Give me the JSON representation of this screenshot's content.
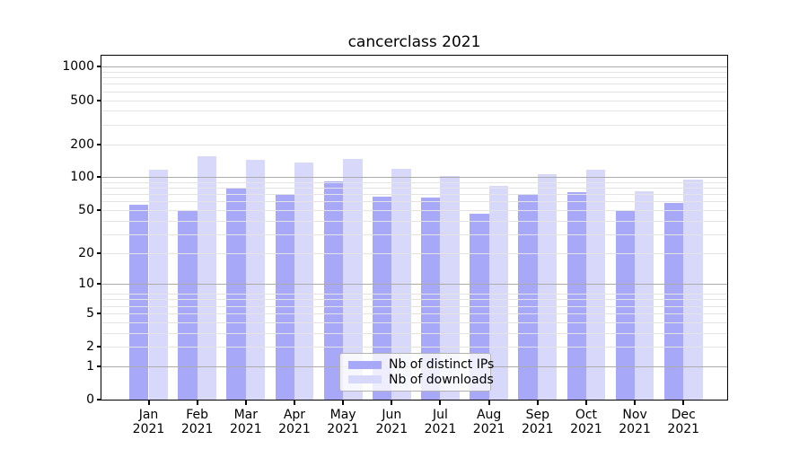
{
  "chart": {
    "title": "cancerclass 2021",
    "legend": {
      "entries": [
        {
          "label": "Nb of distinct IPs",
          "color": "#a8a8f8"
        },
        {
          "label": "Nb of downloads",
          "color": "#d8d8fa"
        }
      ],
      "position": "lower center"
    }
  },
  "chart_data": {
    "type": "bar",
    "title": "cancerclass 2021",
    "categories": [
      "Jan",
      "Feb",
      "Mar",
      "Apr",
      "May",
      "Jun",
      "Jul",
      "Aug",
      "Sep",
      "Oct",
      "Nov",
      "Dec"
    ],
    "category_year": "2021",
    "series": [
      {
        "name": "Nb of distinct IPs",
        "color": "#a8a8f8",
        "values": [
          56,
          50,
          79,
          71,
          91,
          66,
          65,
          46,
          69,
          73,
          50,
          58
        ]
      },
      {
        "name": "Nb of downloads",
        "color": "#d8d8fa",
        "values": [
          118,
          154,
          144,
          137,
          148,
          120,
          103,
          84,
          107,
          118,
          74,
          95
        ]
      }
    ],
    "xlabel": "",
    "ylabel": "",
    "yscale": "log1p",
    "yticks": [
      0,
      1,
      2,
      5,
      10,
      20,
      50,
      100,
      200,
      500,
      1000
    ],
    "ylim": [
      0,
      1260
    ],
    "grid": true,
    "grid_major_at": [
      1,
      10,
      100,
      1000
    ],
    "grid_minor_at": [
      2,
      3,
      4,
      5,
      6,
      7,
      8,
      20,
      30,
      40,
      50,
      60,
      70,
      80,
      90,
      200,
      300,
      400,
      500,
      600,
      700,
      800,
      900
    ],
    "legend_position": "lower center",
    "colors": {
      "spine": "#000000",
      "grid_major": "#ababab",
      "grid_minor": "#e4e4e4",
      "background": "#ffffff"
    }
  }
}
